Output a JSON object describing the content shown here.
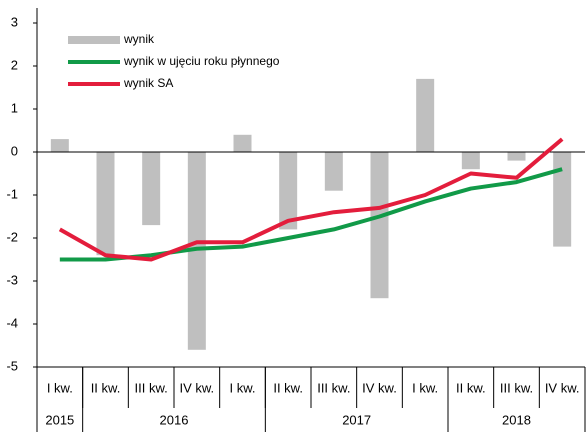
{
  "chart_data": {
    "type": "bar_line",
    "categories": [
      "I kw.",
      "II kw.",
      "III kw.",
      "IV kw.",
      "I kw.",
      "II kw.",
      "III kw.",
      "IV kw.",
      "I kw.",
      "II kw.",
      "III kw.",
      "IV kw."
    ],
    "groups": [
      {
        "label": "2015",
        "count": 1
      },
      {
        "label": "2016",
        "count": 4
      },
      {
        "label": "2017",
        "count": 4
      },
      {
        "label": "2018",
        "count": 3
      }
    ],
    "series": [
      {
        "name": "wynik",
        "type": "bar",
        "color": "#bfbfbf",
        "values": [
          0.3,
          -2.4,
          -1.7,
          -4.6,
          0.4,
          -1.8,
          -0.9,
          -3.4,
          1.7,
          -0.4,
          -0.2,
          -2.2
        ]
      },
      {
        "name": "wynik w ujęciu roku płynnego",
        "type": "line",
        "color": "#119a48",
        "values": [
          -2.5,
          -2.5,
          -2.4,
          -2.25,
          -2.2,
          -2.0,
          -1.8,
          -1.5,
          -1.15,
          -0.85,
          -0.7,
          -0.4
        ]
      },
      {
        "name": "wynik SA",
        "type": "line",
        "color": "#e31d3c",
        "values": [
          -1.8,
          -2.4,
          -2.5,
          -2.1,
          -2.1,
          -1.6,
          -1.4,
          -1.3,
          -1.0,
          -0.5,
          -0.6,
          0.3
        ]
      }
    ],
    "ylim": [
      -5,
      3
    ],
    "yticks": [
      -5,
      -4,
      -3,
      -2,
      -1,
      0,
      1,
      2,
      3
    ],
    "legend": "top-left",
    "grid": false
  }
}
